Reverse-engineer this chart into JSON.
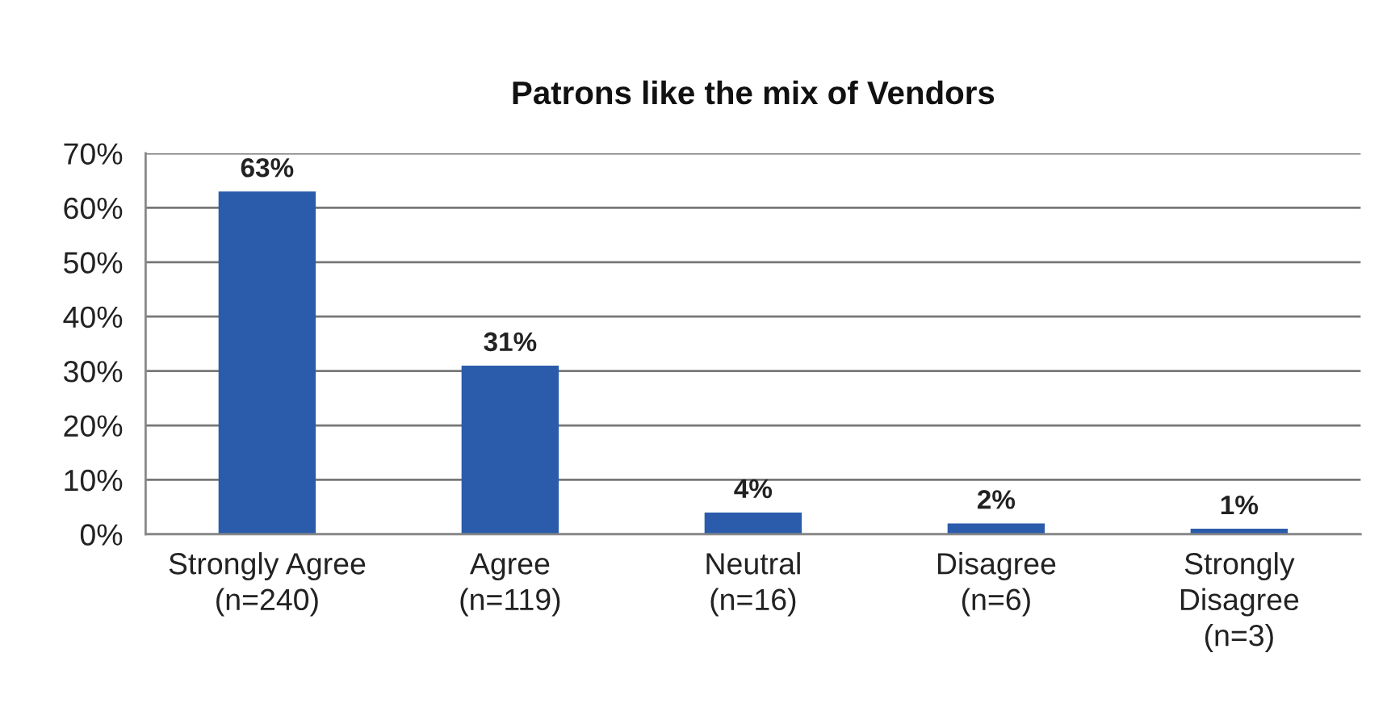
{
  "chart_data": {
    "type": "bar",
    "title": "Patrons like the mix of Vendors",
    "categories": [
      "Strongly Agree\n(n=240)",
      "Agree\n(n=119)",
      "Neutral\n(n=16)",
      "Disagree\n(n=6)",
      "Strongly\nDisagree\n(n=3)"
    ],
    "values": [
      63,
      31,
      4,
      2,
      1
    ],
    "color": "#2b5cab",
    "value_labels": [
      "63%",
      "31%",
      "4%",
      "2%",
      "1%"
    ],
    "ylim": [
      0,
      70
    ],
    "yticks": [
      {
        "value": 0,
        "label": "0%"
      },
      {
        "value": 10,
        "label": "10%"
      },
      {
        "value": 20,
        "label": "20%"
      },
      {
        "value": 30,
        "label": "30%"
      },
      {
        "value": 40,
        "label": "40%"
      },
      {
        "value": 50,
        "label": "50%"
      },
      {
        "value": 60,
        "label": "60%"
      },
      {
        "value": 70,
        "label": "70%"
      }
    ],
    "grid": "y",
    "legend": false
  }
}
